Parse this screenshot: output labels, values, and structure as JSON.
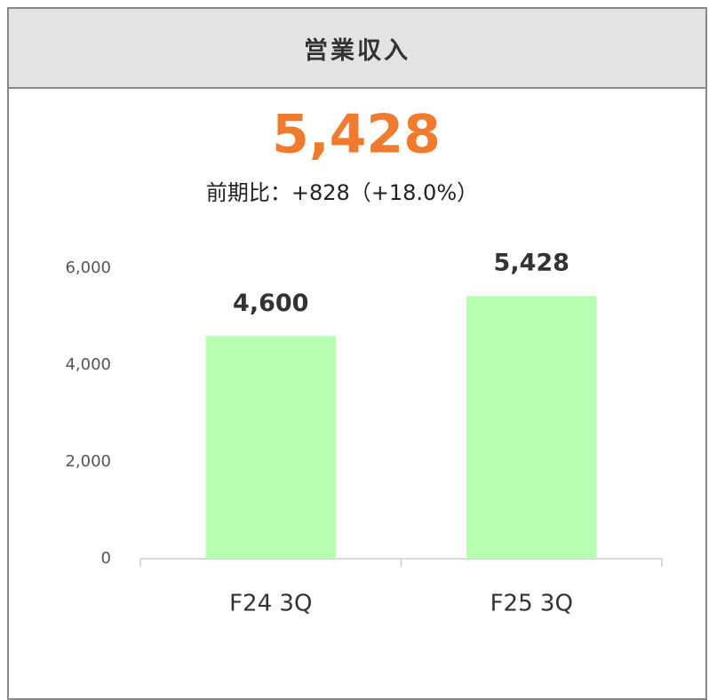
{
  "header": {
    "title": "営業収入"
  },
  "chart_data": {
    "type": "bar",
    "headline": "5,428",
    "subtitle": "前期比：+828（+18.0%）",
    "categories": [
      "F24 3Q",
      "F25 3Q"
    ],
    "values": [
      4600,
      5428
    ],
    "value_labels": [
      "4,600",
      "5,428"
    ],
    "color": "#b9ffb4",
    "ylim": [
      0,
      6000
    ],
    "yticks": [
      0,
      {
        "value": 2000,
        "label": "2,000"
      },
      {
        "value": 4000,
        "label": "4,000"
      },
      {
        "value": 6000,
        "label": "6,000"
      }
    ],
    "grid": false
  }
}
